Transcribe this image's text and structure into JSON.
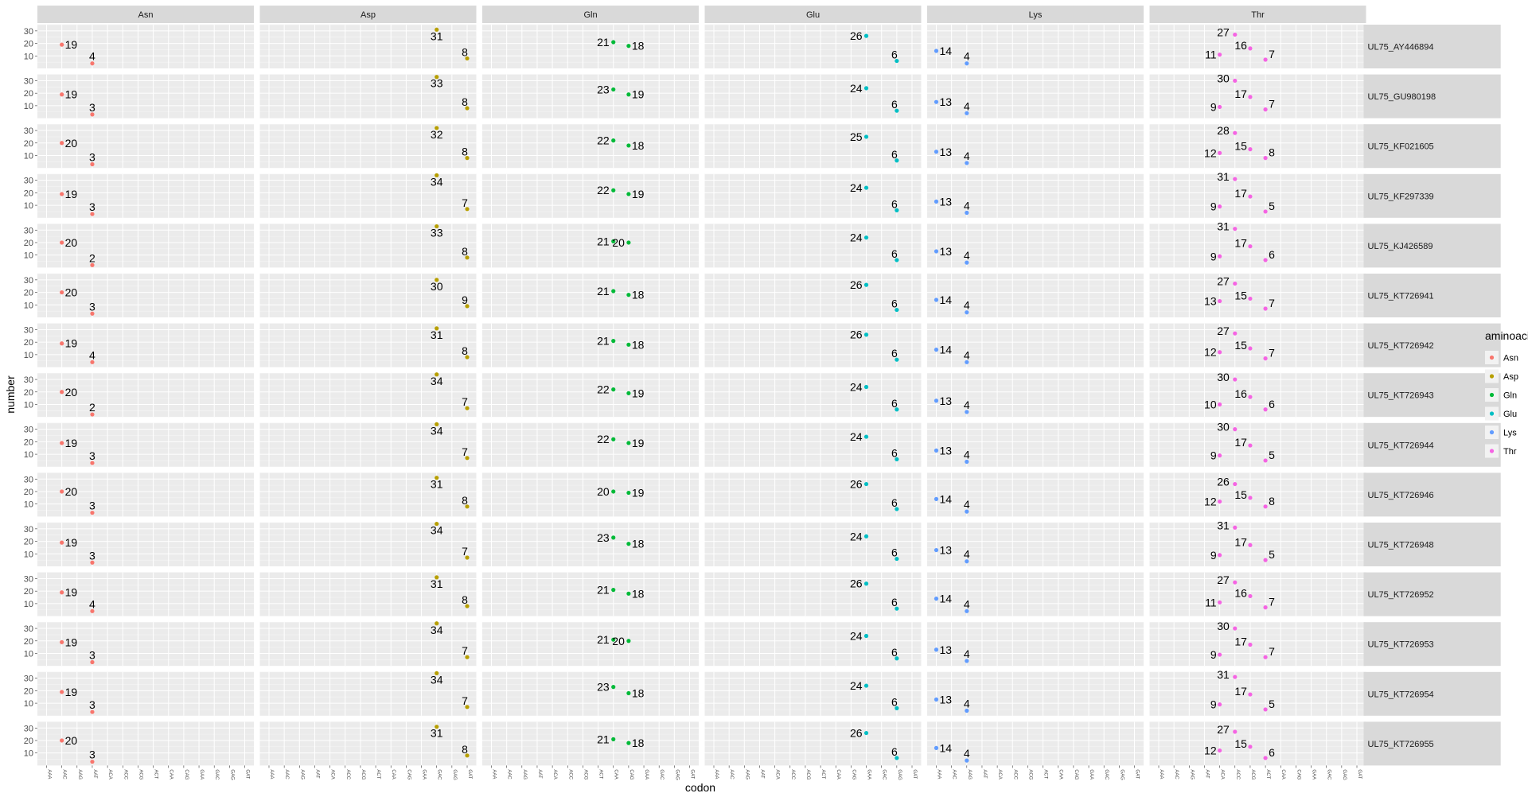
{
  "chart_data": {
    "type": "scatter",
    "xlabel": "codon",
    "ylabel": "number",
    "ylim": [
      0,
      35
    ],
    "yticks": [
      10,
      20,
      30
    ],
    "grid": true,
    "legend": {
      "title": "aminoacid",
      "position": "right",
      "entries": [
        "Asn",
        "Asp",
        "Gln",
        "Glu",
        "Lys",
        "Thr"
      ]
    },
    "colors": {
      "Asn": "#F8766D",
      "Asp": "#B79F00",
      "Gln": "#00BA38",
      "Glu": "#00BFC4",
      "Lys": "#619CFF",
      "Thr": "#F564E3"
    },
    "x_categories": [
      "AAA",
      "AAC",
      "AAG",
      "AAT",
      "ACA",
      "ACC",
      "ACG",
      "ACT",
      "CAA",
      "CAG",
      "GAA",
      "GAC",
      "GAG",
      "GAT"
    ],
    "facet_cols": [
      "Asn",
      "Asp",
      "Gln",
      "Glu",
      "Lys",
      "Thr"
    ],
    "facet_rows": [
      "UL75_AY446894",
      "UL75_GU980198",
      "UL75_KF021605",
      "UL75_KF297339",
      "UL75_KJ426589",
      "UL75_KT726941",
      "UL75_KT726942",
      "UL75_KT726943",
      "UL75_KT726944",
      "UL75_KT726946",
      "UL75_KT726948",
      "UL75_KT726952",
      "UL75_KT726953",
      "UL75_KT726954",
      "UL75_KT726955"
    ],
    "series_codons": {
      "Asn": [
        "AAC",
        "AAT"
      ],
      "Asp": [
        "GAC",
        "GAT"
      ],
      "Gln": [
        "CAA",
        "CAG"
      ],
      "Glu": [
        "GAA",
        "GAG"
      ],
      "Lys": [
        "AAA",
        "AAG"
      ],
      "Thr": [
        "ACA",
        "ACC",
        "ACG",
        "ACT"
      ]
    },
    "values": {
      "UL75_AY446894": {
        "Asn": [
          19,
          4
        ],
        "Asp": [
          31,
          8
        ],
        "Gln": [
          21,
          18
        ],
        "Glu": [
          26,
          6
        ],
        "Lys": [
          14,
          4
        ],
        "Thr": [
          11,
          27,
          16,
          7
        ]
      },
      "UL75_GU980198": {
        "Asn": [
          19,
          3
        ],
        "Asp": [
          33,
          8
        ],
        "Gln": [
          23,
          19
        ],
        "Glu": [
          24,
          6
        ],
        "Lys": [
          13,
          4
        ],
        "Thr": [
          9,
          30,
          17,
          7
        ]
      },
      "UL75_KF021605": {
        "Asn": [
          20,
          3
        ],
        "Asp": [
          32,
          8
        ],
        "Gln": [
          22,
          18
        ],
        "Glu": [
          25,
          6
        ],
        "Lys": [
          13,
          4
        ],
        "Thr": [
          12,
          28,
          15,
          8
        ]
      },
      "UL75_KF297339": {
        "Asn": [
          19,
          3
        ],
        "Asp": [
          34,
          7
        ],
        "Gln": [
          22,
          19
        ],
        "Glu": [
          24,
          6
        ],
        "Lys": [
          13,
          4
        ],
        "Thr": [
          9,
          31,
          17,
          5
        ]
      },
      "UL75_KJ426589": {
        "Asn": [
          20,
          2
        ],
        "Asp": [
          33,
          8
        ],
        "Gln": [
          21,
          20
        ],
        "Glu": [
          24,
          6
        ],
        "Lys": [
          13,
          4
        ],
        "Thr": [
          9,
          31,
          17,
          6
        ]
      },
      "UL75_KT726941": {
        "Asn": [
          20,
          3
        ],
        "Asp": [
          30,
          9
        ],
        "Gln": [
          21,
          18
        ],
        "Glu": [
          26,
          6
        ],
        "Lys": [
          14,
          4
        ],
        "Thr": [
          13,
          27,
          15,
          7
        ]
      },
      "UL75_KT726942": {
        "Asn": [
          19,
          4
        ],
        "Asp": [
          31,
          8
        ],
        "Gln": [
          21,
          18
        ],
        "Glu": [
          26,
          6
        ],
        "Lys": [
          14,
          4
        ],
        "Thr": [
          12,
          27,
          15,
          7
        ]
      },
      "UL75_KT726943": {
        "Asn": [
          20,
          2
        ],
        "Asp": [
          34,
          7
        ],
        "Gln": [
          22,
          19
        ],
        "Glu": [
          24,
          6
        ],
        "Lys": [
          13,
          4
        ],
        "Thr": [
          10,
          30,
          16,
          6
        ]
      },
      "UL75_KT726944": {
        "Asn": [
          19,
          3
        ],
        "Asp": [
          34,
          7
        ],
        "Gln": [
          22,
          19
        ],
        "Glu": [
          24,
          6
        ],
        "Lys": [
          13,
          4
        ],
        "Thr": [
          9,
          30,
          17,
          5
        ]
      },
      "UL75_KT726946": {
        "Asn": [
          20,
          3
        ],
        "Asp": [
          31,
          8
        ],
        "Gln": [
          20,
          19
        ],
        "Glu": [
          26,
          6
        ],
        "Lys": [
          14,
          4
        ],
        "Thr": [
          12,
          26,
          15,
          8
        ]
      },
      "UL75_KT726948": {
        "Asn": [
          19,
          3
        ],
        "Asp": [
          34,
          7
        ],
        "Gln": [
          23,
          18
        ],
        "Glu": [
          24,
          6
        ],
        "Lys": [
          13,
          4
        ],
        "Thr": [
          9,
          31,
          17,
          5
        ]
      },
      "UL75_KT726952": {
        "Asn": [
          19,
          4
        ],
        "Asp": [
          31,
          8
        ],
        "Gln": [
          21,
          18
        ],
        "Glu": [
          26,
          6
        ],
        "Lys": [
          14,
          4
        ],
        "Thr": [
          11,
          27,
          16,
          7
        ]
      },
      "UL75_KT726953": {
        "Asn": [
          19,
          3
        ],
        "Asp": [
          34,
          7
        ],
        "Gln": [
          21,
          20
        ],
        "Glu": [
          24,
          6
        ],
        "Lys": [
          13,
          4
        ],
        "Thr": [
          9,
          30,
          17,
          7
        ]
      },
      "UL75_KT726954": {
        "Asn": [
          19,
          3
        ],
        "Asp": [
          34,
          7
        ],
        "Gln": [
          23,
          18
        ],
        "Glu": [
          24,
          6
        ],
        "Lys": [
          13,
          4
        ],
        "Thr": [
          9,
          31,
          17,
          5
        ]
      },
      "UL75_KT726955": {
        "Asn": [
          20,
          3
        ],
        "Asp": [
          31,
          8
        ],
        "Gln": [
          21,
          18
        ],
        "Glu": [
          26,
          6
        ],
        "Lys": [
          14,
          4
        ],
        "Thr": [
          12,
          27,
          15,
          6
        ]
      }
    }
  }
}
